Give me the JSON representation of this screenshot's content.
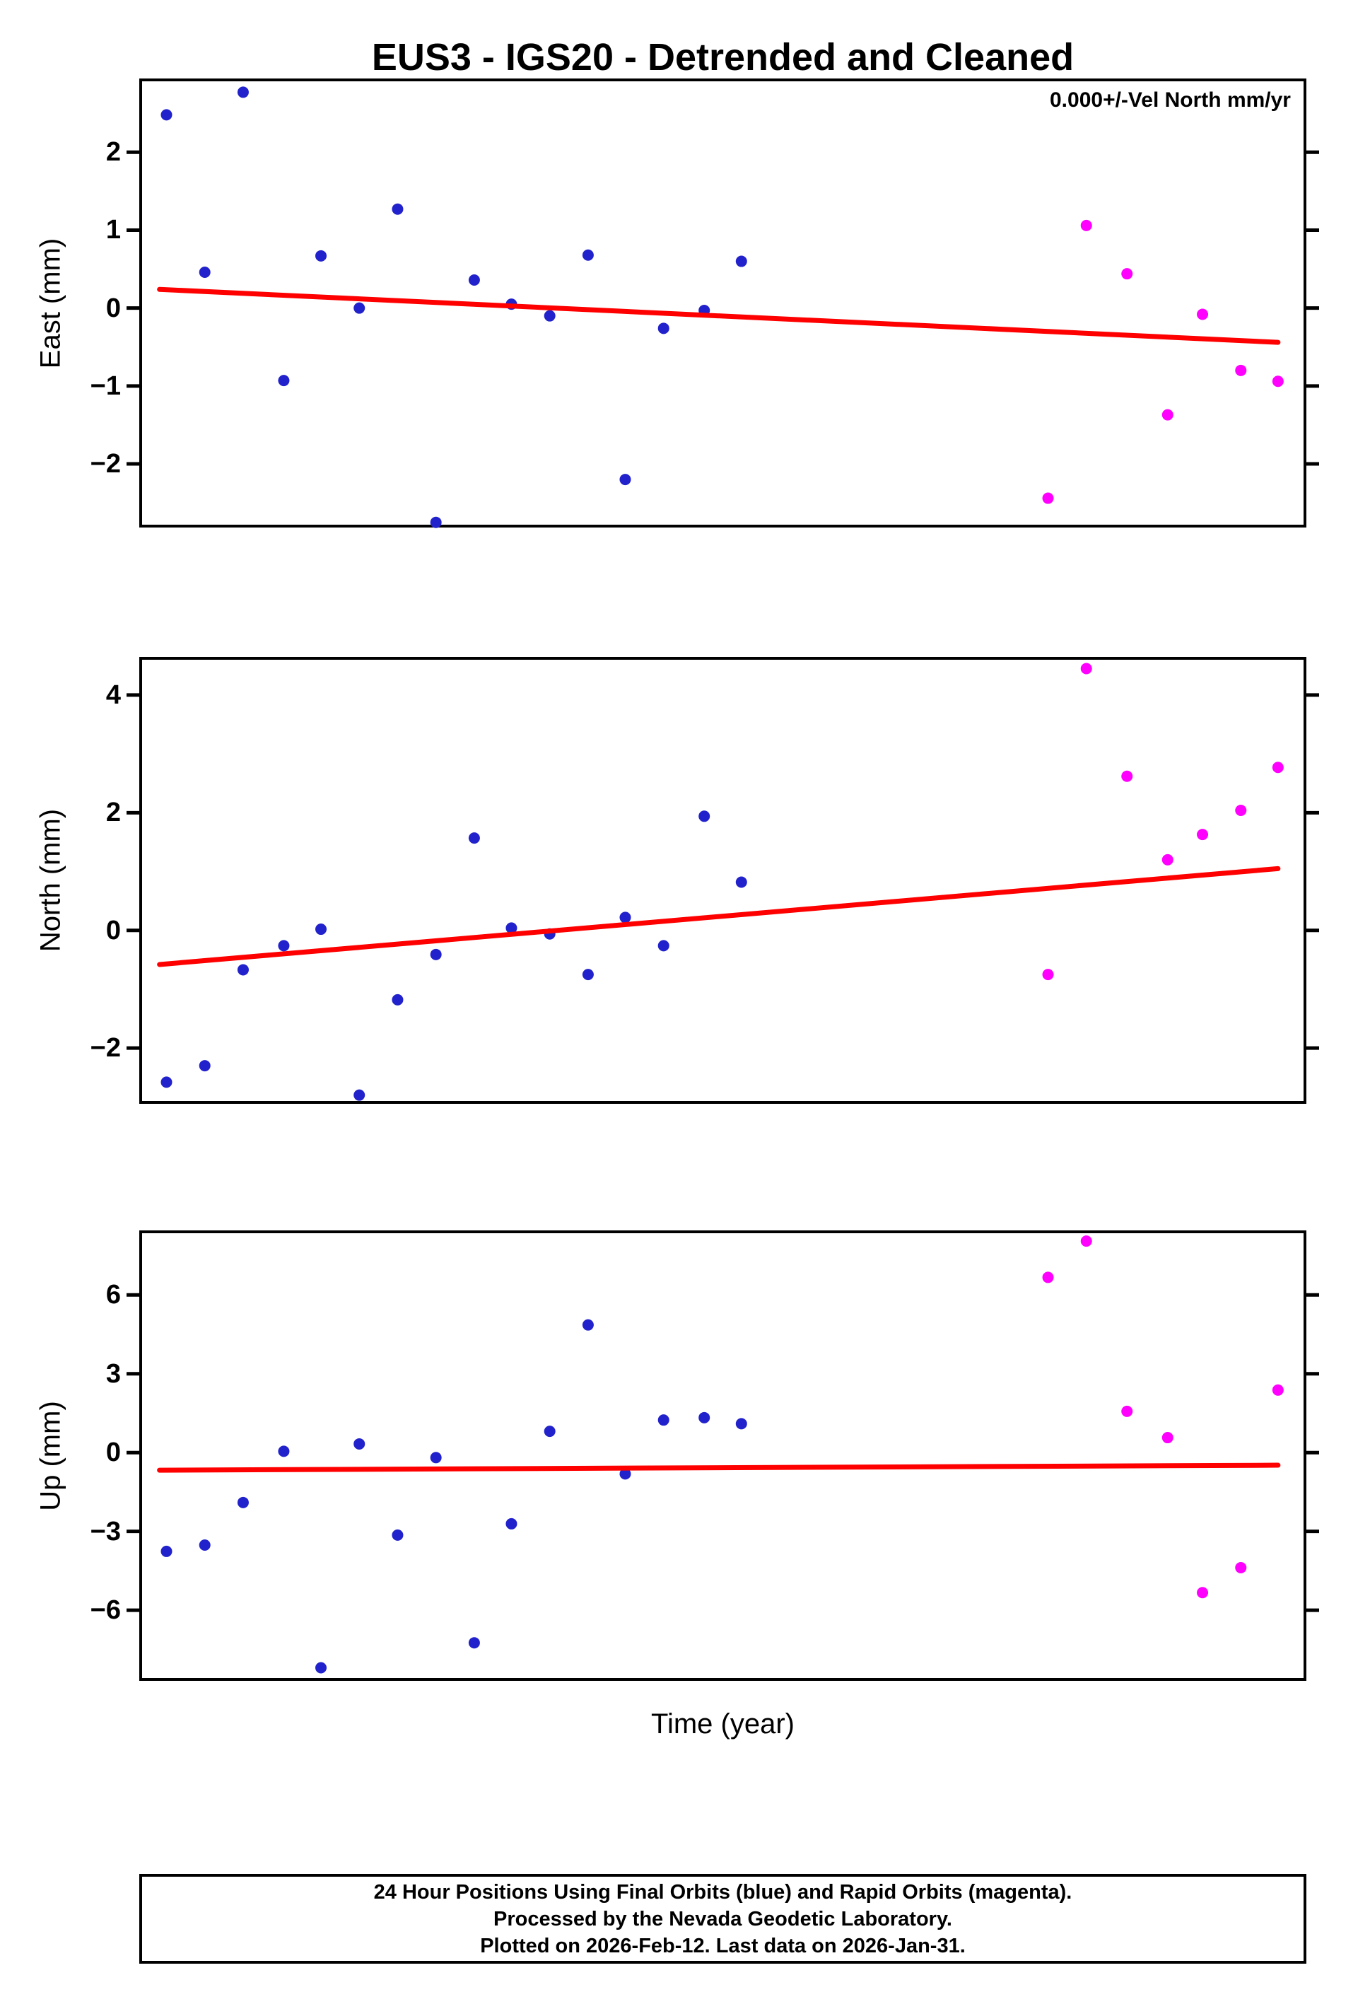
{
  "title": "EUS3 - IGS20 - Detrended and Cleaned",
  "annotation": "0.000+/-Vel North mm/yr",
  "xlabel": "Time (year)",
  "footer": {
    "line1": "24 Hour Positions Using Final Orbits (blue) and Rapid Orbits (magenta).",
    "line2": "Processed by the Nevada Geodetic Laboratory.",
    "line3": "Plotted on 2026-Feb-12. Last data on 2026-Jan-31."
  },
  "colors": {
    "final_orbits": "#2222cc",
    "rapid_orbits": "#ff00ff",
    "trend": "#ff0000",
    "frame": "#000000"
  },
  "chart_data": [
    {
      "id": "east",
      "type": "scatter",
      "ylabel": "East (mm)",
      "ylim": [
        -2.78,
        2.91
      ],
      "yticks": [
        2,
        1,
        0,
        -1,
        -2
      ],
      "grid": false,
      "legend": "none",
      "series": [
        {
          "key": "final",
          "name": "Final Orbits (blue)",
          "color": "#2222cc",
          "x": [
            0.021,
            0.054,
            0.087,
            0.122,
            0.154,
            0.187,
            0.22,
            0.253,
            0.286,
            0.318,
            0.351,
            0.384,
            0.416,
            0.449,
            0.484,
            0.516
          ],
          "y": [
            2.48,
            0.46,
            2.77,
            -0.93,
            0.67,
            0.0,
            1.27,
            -2.75,
            0.36,
            0.05,
            -0.1,
            0.68,
            -2.2,
            -0.26,
            -0.03,
            0.6
          ]
        },
        {
          "key": "rapid",
          "name": "Rapid Orbits (magenta)",
          "color": "#ff00ff",
          "x": [
            0.78,
            0.813,
            0.848,
            0.883,
            0.913,
            0.946,
            0.978
          ],
          "y": [
            -2.44,
            1.06,
            0.44,
            -1.37,
            -0.08,
            -0.8,
            -0.94
          ]
        }
      ],
      "trend": {
        "x": [
          0.015,
          0.978
        ],
        "y": [
          0.24,
          -0.44
        ],
        "color": "#ff0000"
      }
    },
    {
      "id": "north",
      "type": "scatter",
      "ylabel": "North (mm)",
      "ylim": [
        -2.9,
        4.6
      ],
      "yticks": [
        4,
        2,
        0,
        -2
      ],
      "grid": false,
      "legend": "none",
      "series": [
        {
          "key": "final",
          "name": "Final Orbits (blue)",
          "color": "#2222cc",
          "x": [
            0.021,
            0.054,
            0.087,
            0.122,
            0.154,
            0.187,
            0.22,
            0.253,
            0.286,
            0.318,
            0.351,
            0.384,
            0.416,
            0.449,
            0.484,
            0.516
          ],
          "y": [
            -2.58,
            -2.3,
            -0.67,
            -0.26,
            0.02,
            -2.8,
            -1.18,
            -0.41,
            1.57,
            0.04,
            -0.06,
            -0.75,
            0.22,
            -0.26,
            1.94,
            0.82
          ]
        },
        {
          "key": "rapid",
          "name": "Rapid Orbits (magenta)",
          "color": "#ff00ff",
          "x": [
            0.78,
            0.813,
            0.848,
            0.883,
            0.913,
            0.946,
            0.978
          ],
          "y": [
            -0.75,
            4.45,
            2.62,
            1.2,
            1.63,
            2.04,
            2.77
          ]
        }
      ],
      "trend": {
        "x": [
          0.015,
          0.978
        ],
        "y": [
          -0.58,
          1.05
        ],
        "color": "#ff0000"
      }
    },
    {
      "id": "up",
      "type": "scatter",
      "ylabel": "Up (mm)",
      "ylim": [
        -8.58,
        8.35
      ],
      "yticks": [
        6,
        3,
        0,
        -3,
        -6
      ],
      "grid": false,
      "legend": "none",
      "series": [
        {
          "key": "final",
          "name": "Final Orbits (blue)",
          "color": "#2222cc",
          "x": [
            0.021,
            0.054,
            0.087,
            0.122,
            0.154,
            0.187,
            0.22,
            0.253,
            0.286,
            0.318,
            0.351,
            0.384,
            0.416,
            0.449,
            0.484,
            0.516
          ],
          "y": [
            -3.76,
            -3.52,
            -1.9,
            0.05,
            -8.19,
            0.33,
            -3.14,
            -0.19,
            -7.24,
            -2.71,
            0.81,
            4.86,
            -0.81,
            1.24,
            1.33,
            1.1
          ]
        },
        {
          "key": "rapid",
          "name": "Rapid Orbits (magenta)",
          "color": "#ff00ff",
          "x": [
            0.78,
            0.813,
            0.848,
            0.883,
            0.913,
            0.946,
            0.978
          ],
          "y": [
            6.67,
            8.05,
            1.57,
            0.57,
            -5.33,
            -4.38,
            2.38
          ]
        }
      ],
      "trend": {
        "x": [
          0.015,
          0.978
        ],
        "y": [
          -0.67,
          -0.48
        ],
        "color": "#ff0000"
      }
    }
  ]
}
